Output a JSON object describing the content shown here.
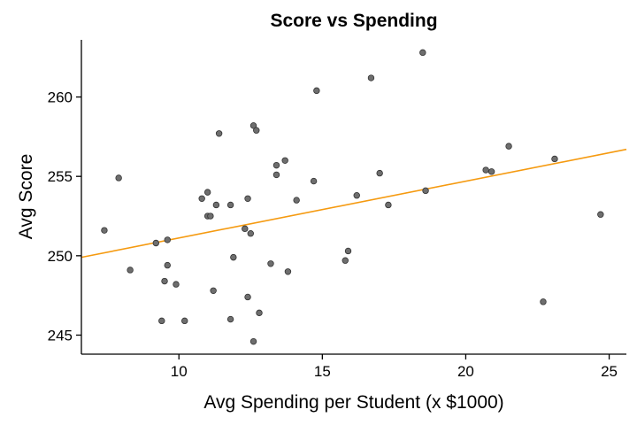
{
  "chart_data": {
    "type": "scatter",
    "title": "Score vs Spending",
    "xlabel": "Avg Spending per Student (x $1000)",
    "ylabel": "Avg Score",
    "xlim": [
      6.6,
      25.6
    ],
    "ylim": [
      243.8,
      263.6
    ],
    "xticks": [
      10,
      15,
      20,
      25
    ],
    "yticks": [
      245,
      250,
      255,
      260
    ],
    "grid": false,
    "colors": {
      "points": "#6e6e6e",
      "trend": "#f59a10"
    },
    "trendline": {
      "x": [
        6.6,
        25.6
      ],
      "y": [
        249.9,
        256.7
      ]
    },
    "points": [
      {
        "x": 7.4,
        "y": 251.6
      },
      {
        "x": 7.9,
        "y": 254.9
      },
      {
        "x": 8.3,
        "y": 249.1
      },
      {
        "x": 9.2,
        "y": 250.8
      },
      {
        "x": 9.4,
        "y": 245.9
      },
      {
        "x": 9.5,
        "y": 248.4
      },
      {
        "x": 9.6,
        "y": 251.0
      },
      {
        "x": 9.6,
        "y": 249.4
      },
      {
        "x": 9.9,
        "y": 248.2
      },
      {
        "x": 10.2,
        "y": 245.9
      },
      {
        "x": 10.8,
        "y": 253.6
      },
      {
        "x": 11.0,
        "y": 254.0
      },
      {
        "x": 11.0,
        "y": 252.5
      },
      {
        "x": 11.1,
        "y": 252.5
      },
      {
        "x": 11.2,
        "y": 247.8
      },
      {
        "x": 11.3,
        "y": 253.2
      },
      {
        "x": 11.4,
        "y": 257.7
      },
      {
        "x": 11.8,
        "y": 253.2
      },
      {
        "x": 11.8,
        "y": 246.0
      },
      {
        "x": 11.9,
        "y": 249.9
      },
      {
        "x": 12.3,
        "y": 251.7
      },
      {
        "x": 12.4,
        "y": 253.6
      },
      {
        "x": 12.4,
        "y": 247.4
      },
      {
        "x": 12.5,
        "y": 251.4
      },
      {
        "x": 12.6,
        "y": 258.2
      },
      {
        "x": 12.6,
        "y": 244.6
      },
      {
        "x": 12.7,
        "y": 257.9
      },
      {
        "x": 12.8,
        "y": 246.4
      },
      {
        "x": 13.2,
        "y": 249.5
      },
      {
        "x": 13.4,
        "y": 255.7
      },
      {
        "x": 13.4,
        "y": 255.1
      },
      {
        "x": 13.7,
        "y": 256.0
      },
      {
        "x": 13.8,
        "y": 249.0
      },
      {
        "x": 14.1,
        "y": 253.5
      },
      {
        "x": 14.7,
        "y": 254.7
      },
      {
        "x": 14.8,
        "y": 260.4
      },
      {
        "x": 15.8,
        "y": 249.7
      },
      {
        "x": 15.9,
        "y": 250.3
      },
      {
        "x": 16.2,
        "y": 253.8
      },
      {
        "x": 16.7,
        "y": 261.2
      },
      {
        "x": 17.0,
        "y": 255.2
      },
      {
        "x": 17.3,
        "y": 253.2
      },
      {
        "x": 18.5,
        "y": 262.8
      },
      {
        "x": 18.6,
        "y": 254.1
      },
      {
        "x": 20.7,
        "y": 255.4
      },
      {
        "x": 20.9,
        "y": 255.3
      },
      {
        "x": 21.5,
        "y": 256.9
      },
      {
        "x": 22.7,
        "y": 247.1
      },
      {
        "x": 23.1,
        "y": 256.1
      },
      {
        "x": 24.7,
        "y": 252.6
      }
    ]
  }
}
